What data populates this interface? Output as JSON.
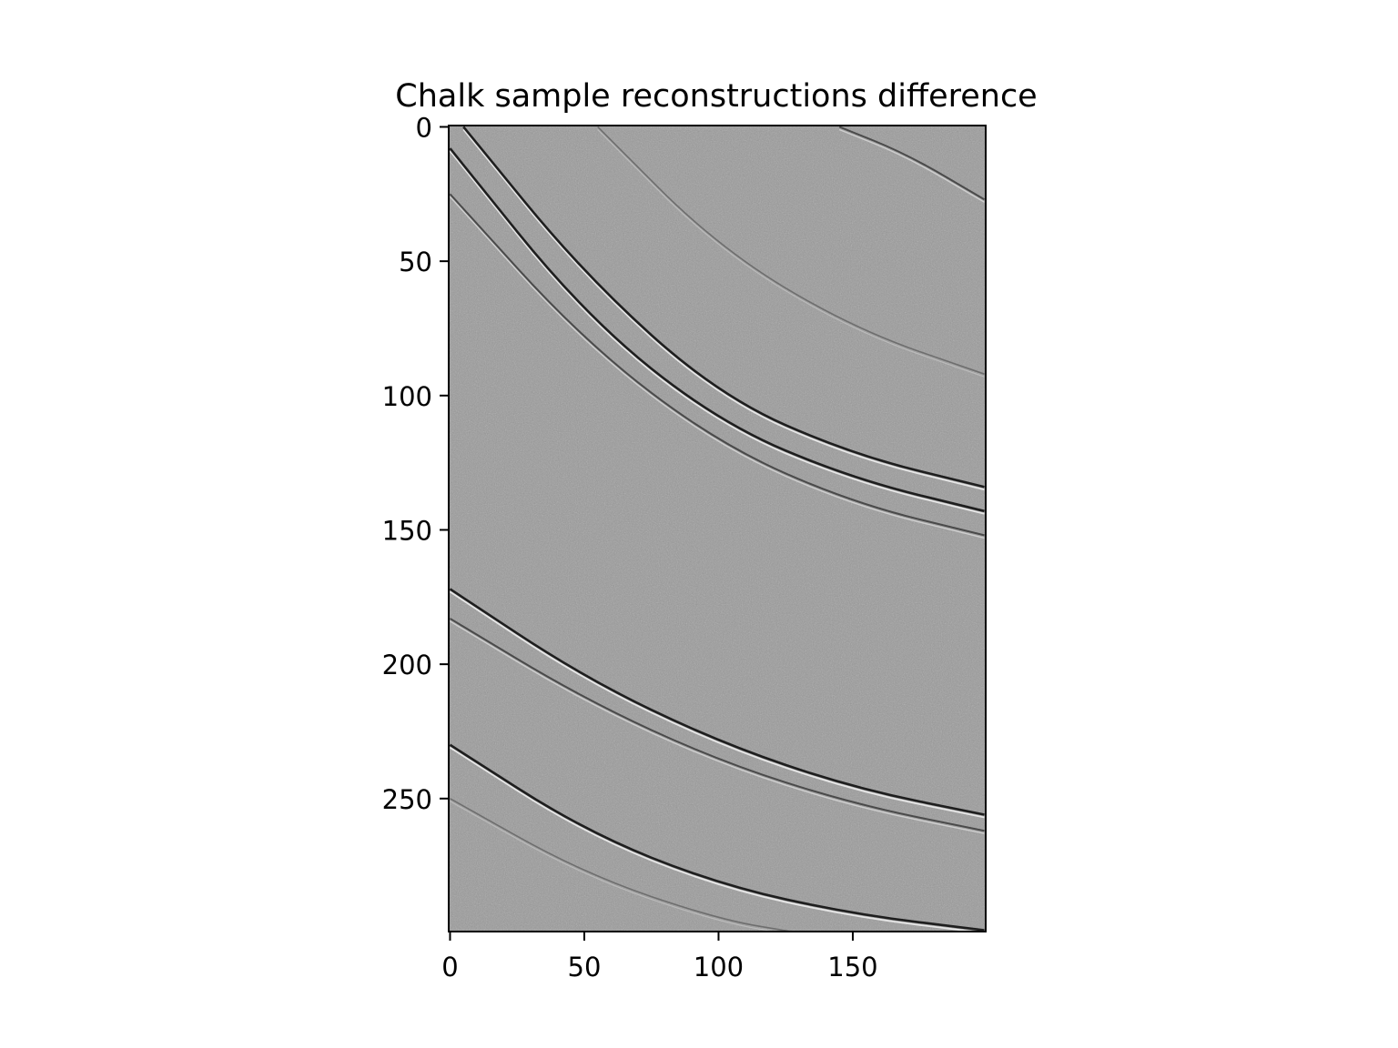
{
  "chart_data": {
    "type": "heatmap",
    "title": "Chalk sample reconstructions difference",
    "xlabel": "",
    "ylabel": "",
    "colormap": "gray",
    "image_size": {
      "columns": 200,
      "rows": 300
    },
    "x_ticks": [
      0,
      50,
      100,
      150
    ],
    "y_ticks": [
      0,
      50,
      100,
      150,
      200,
      250
    ],
    "x_tick_labels": [
      "0",
      "50",
      "100",
      "150"
    ],
    "y_tick_labels": [
      "0",
      "50",
      "100",
      "150",
      "200",
      "250"
    ],
    "xlim": [
      -0.5,
      199.5
    ],
    "ylim": [
      299.5,
      -0.5
    ],
    "grid": false,
    "background_value": "#9a9a9a",
    "arcs": [
      {
        "name": "upper-main-edge",
        "points": [
          [
            5,
            0
          ],
          [
            50,
            55
          ],
          [
            100,
            100
          ],
          [
            150,
            122
          ],
          [
            199,
            134
          ]
        ],
        "tone": "dark"
      },
      {
        "name": "upper-second-edge",
        "points": [
          [
            0,
            8
          ],
          [
            50,
            70
          ],
          [
            100,
            110
          ],
          [
            150,
            131
          ],
          [
            199,
            143
          ]
        ],
        "tone": "dark"
      },
      {
        "name": "upper-third-edge",
        "points": [
          [
            0,
            25
          ],
          [
            50,
            80
          ],
          [
            100,
            118
          ],
          [
            150,
            140
          ],
          [
            199,
            152
          ]
        ],
        "tone": "medium"
      },
      {
        "name": "upper-right-faint",
        "points": [
          [
            55,
            0
          ],
          [
            100,
            45
          ],
          [
            150,
            75
          ],
          [
            199,
            92
          ]
        ],
        "tone": "faint"
      },
      {
        "name": "corner-arc",
        "points": [
          [
            145,
            0
          ],
          [
            170,
            10
          ],
          [
            199,
            27
          ]
        ],
        "tone": "medium"
      },
      {
        "name": "lower-main-edge",
        "points": [
          [
            0,
            172
          ],
          [
            50,
            205
          ],
          [
            100,
            229
          ],
          [
            150,
            246
          ],
          [
            199,
            256
          ]
        ],
        "tone": "dark"
      },
      {
        "name": "lower-second-edge",
        "points": [
          [
            0,
            183
          ],
          [
            50,
            213
          ],
          [
            100,
            236
          ],
          [
            150,
            252
          ],
          [
            199,
            262
          ]
        ],
        "tone": "medium"
      },
      {
        "name": "bottom-edge",
        "points": [
          [
            0,
            230
          ],
          [
            50,
            262
          ],
          [
            100,
            282
          ],
          [
            150,
            293
          ],
          [
            199,
            299
          ]
        ],
        "tone": "dark"
      },
      {
        "name": "bottom-second-edge",
        "points": [
          [
            0,
            250
          ],
          [
            50,
            278
          ],
          [
            100,
            295
          ],
          [
            130,
            300
          ]
        ],
        "tone": "faint"
      }
    ]
  }
}
